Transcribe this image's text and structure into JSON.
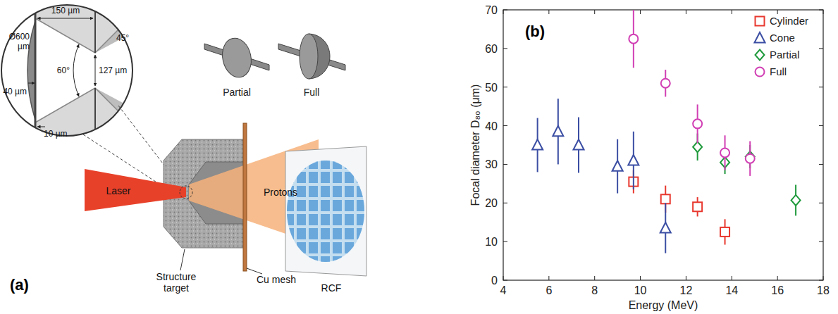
{
  "panel_a": {
    "label": "(a)",
    "inset": {
      "gap": "150 µm",
      "exit_angle": "45°",
      "diameter": "Ø600 µm",
      "depth": "40 µm",
      "cone_angle": "60°",
      "opening": "127 µm",
      "foil": "10 µm"
    },
    "shapes": [
      "Partial",
      "Full"
    ],
    "labels": {
      "laser": "Laser",
      "protons": "Protons",
      "target": "Structure target",
      "mesh": "Cu mesh",
      "rcf": "RCF"
    }
  },
  "panel_b": {
    "label": "(b)"
  },
  "chart_data": {
    "type": "scatter",
    "x_label": "Energy (MeV)",
    "y_label": "Focal diameter D₈₀ (μm)",
    "xlim": [
      4,
      18
    ],
    "xticks": [
      4,
      6,
      8,
      10,
      12,
      14,
      16,
      18
    ],
    "ylim": [
      0,
      70
    ],
    "yticks": [
      0,
      10,
      20,
      30,
      40,
      50,
      60,
      70
    ],
    "legend": "upper right",
    "series": [
      {
        "name": "Cylinder",
        "color": "#e8382f",
        "marker": "square",
        "x": [
          9.7,
          11.1,
          12.5,
          13.7
        ],
        "values": [
          25.5,
          21,
          19,
          12.5
        ],
        "errors": [
          3,
          3.5,
          2.5,
          3.3
        ]
      },
      {
        "name": "Cone",
        "color": "#3b4ea3",
        "marker": "triangle",
        "x": [
          5.5,
          6.4,
          7.3,
          9.0,
          9.7,
          11.1
        ],
        "values": [
          35,
          38.5,
          35,
          29.5,
          31,
          13.5
        ],
        "errors": [
          7,
          8.5,
          7.2,
          7,
          7.5,
          6.5
        ]
      },
      {
        "name": "Partial",
        "color": "#1f9a3c",
        "marker": "diamond",
        "x": [
          12.5,
          13.7,
          14.8,
          16.8
        ],
        "values": [
          34.5,
          30.5,
          32,
          20.7
        ],
        "errors": [
          3.5,
          3,
          3,
          4
        ]
      },
      {
        "name": "Full",
        "color": "#d13fb4",
        "marker": "circle",
        "x": [
          9.7,
          11.1,
          12.5,
          13.7,
          14.8
        ],
        "values": [
          62.5,
          51,
          40.5,
          33,
          31.5
        ],
        "errors": [
          7.5,
          3.5,
          5,
          4.5,
          4.5
        ]
      }
    ]
  }
}
